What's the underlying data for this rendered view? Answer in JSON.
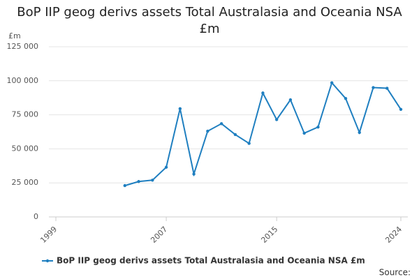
{
  "chart_data": {
    "type": "line",
    "title": "BoP IIP geog derivs assets Total Australasia and Oceania NSA £m",
    "y_label": "£m",
    "source": "Source:",
    "x": [
      2004,
      2005,
      2006,
      2007,
      2008,
      2009,
      2010,
      2011,
      2012,
      2013,
      2014,
      2015,
      2016,
      2017,
      2018,
      2019,
      2020,
      2021,
      2022,
      2023,
      2024
    ],
    "series": [
      {
        "name": "BoP IIP geog derivs assets Total Australasia and Oceania NSA £m",
        "color": "#1f7fc0",
        "values": [
          23000,
          26000,
          27000,
          36500,
          79500,
          31500,
          63000,
          68500,
          60500,
          54000,
          91000,
          71500,
          86000,
          61500,
          66000,
          98500,
          87000,
          62000,
          95000,
          94500,
          79000
        ]
      }
    ],
    "xlim": [
      1999,
      2024
    ],
    "xticks": [
      1999,
      2007,
      2015,
      2024
    ],
    "ylim": [
      0,
      125000
    ],
    "yticks": [
      0,
      {
        "value": 25000,
        "label": "25 000"
      },
      {
        "value": 50000,
        "label": "50 000"
      },
      {
        "value": 75000,
        "label": "75 000"
      },
      {
        "value": 100000,
        "label": "100 000"
      },
      {
        "value": 125000,
        "label": "125 000"
      }
    ],
    "grid": true
  }
}
